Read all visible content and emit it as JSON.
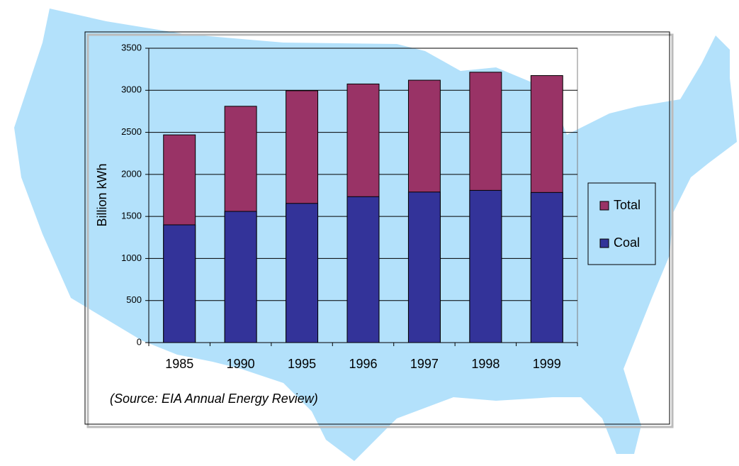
{
  "chart_data": {
    "type": "bar",
    "mode": "overlap",
    "categories": [
      "1985",
      "1990",
      "1995",
      "1996",
      "1997",
      "1998",
      "1999"
    ],
    "series": [
      {
        "name": "Total",
        "color": "#993366",
        "values": [
          2470,
          2810,
          2995,
          3075,
          3120,
          3215,
          3175
        ]
      },
      {
        "name": "Coal",
        "color": "#333399",
        "values": [
          1400,
          1560,
          1655,
          1735,
          1790,
          1810,
          1785
        ]
      }
    ],
    "ylabel": "Billion kWh",
    "ylim": [
      0,
      3500
    ],
    "yticks": [
      0,
      500,
      1000,
      1500,
      2000,
      2500,
      3000,
      3500
    ],
    "grid": true,
    "legend": "right",
    "annotation": "(Source: EIA Annual Energy Review)"
  }
}
